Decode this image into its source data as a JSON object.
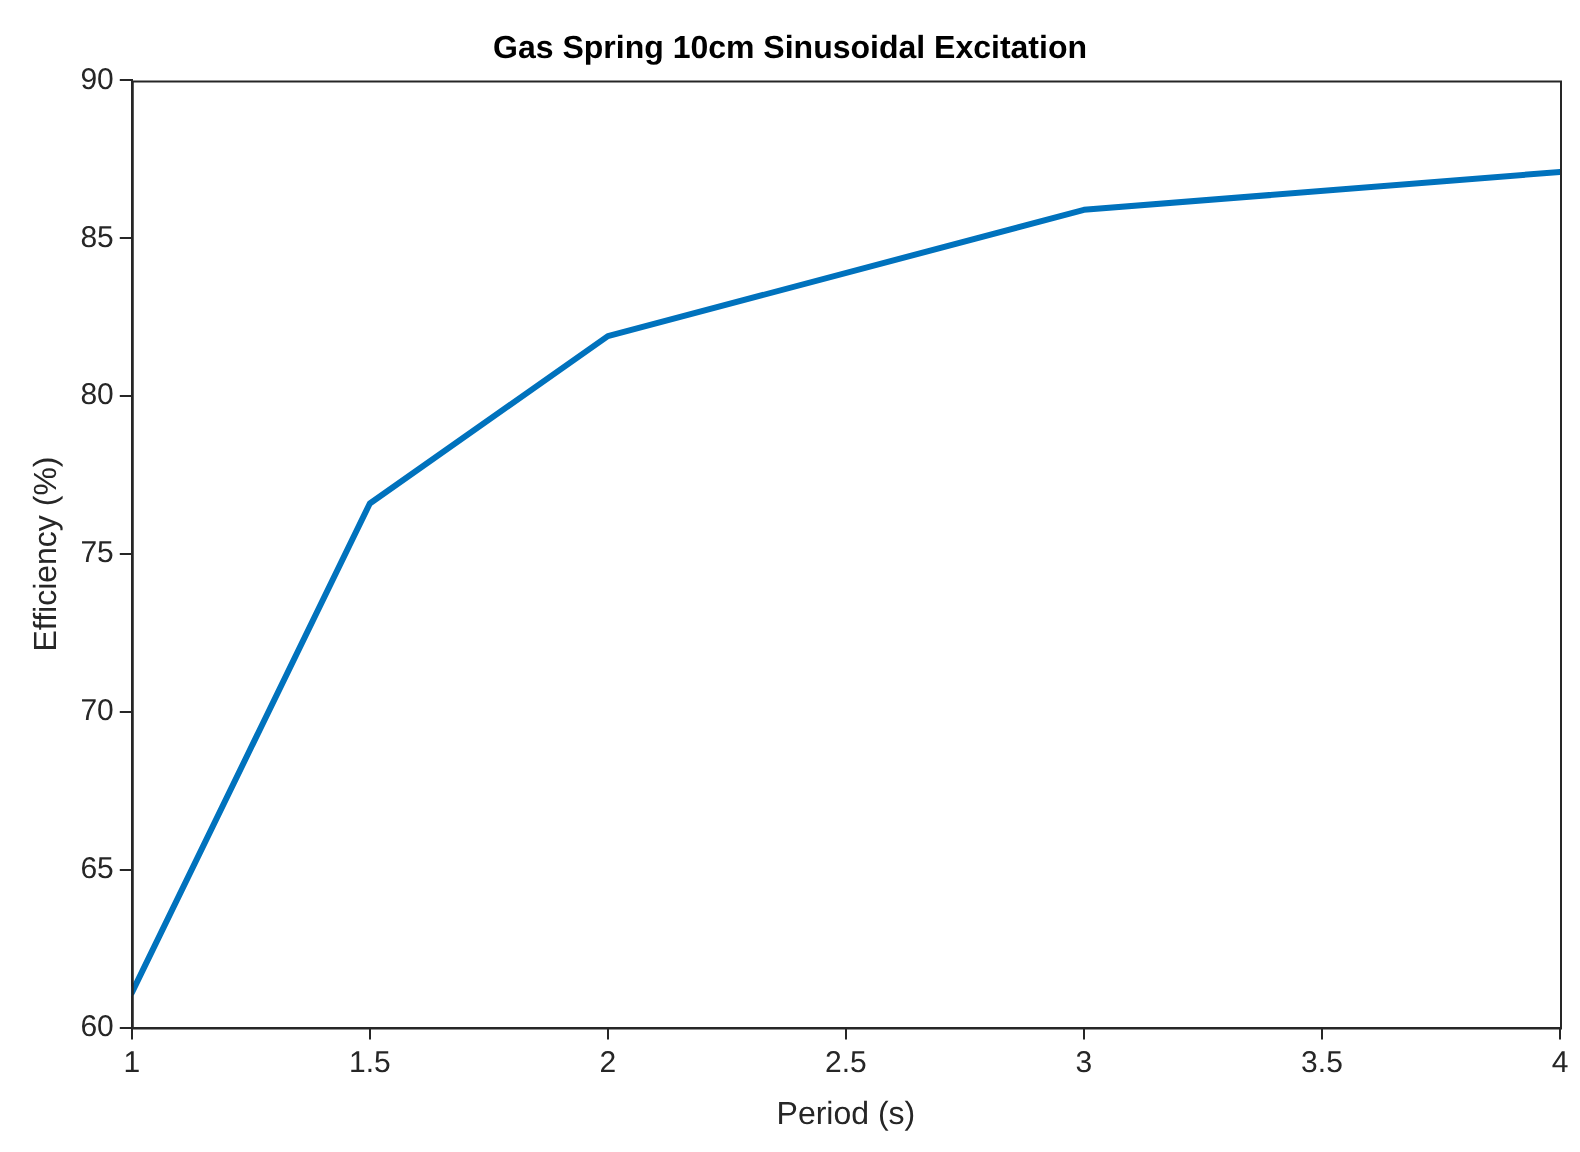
{
  "chart_data": {
    "type": "line",
    "title": "Gas Spring 10cm Sinusoidal Excitation",
    "xlabel": "Period (s)",
    "ylabel": "Efficiency (%)",
    "x": [
      1,
      1.5,
      2,
      3,
      4
    ],
    "series": [
      {
        "color": "#0072bd",
        "values": [
          61.1,
          76.6,
          81.9,
          85.9,
          87.1
        ]
      }
    ],
    "xlim": [
      1,
      4
    ],
    "xticks": [
      1,
      1.5,
      2,
      2.5,
      3,
      3.5,
      4
    ],
    "ylim": [
      60,
      90
    ],
    "yticks": [
      60,
      65,
      70,
      75,
      80,
      85,
      90
    ],
    "grid": false,
    "legend": false,
    "marker": "none",
    "line_style": "solid"
  }
}
